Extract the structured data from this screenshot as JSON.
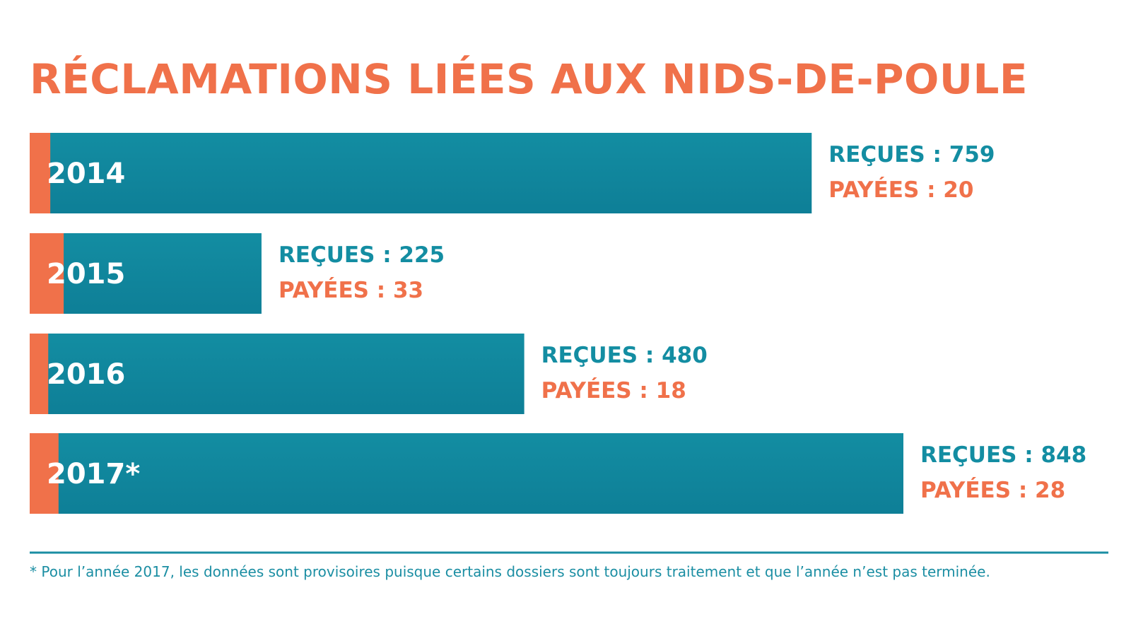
{
  "colors": {
    "received": "#138da2",
    "received_dark": "#0e7f97",
    "paid": "#f0714a",
    "footnote": "#1b8ea3"
  },
  "chart_data": {
    "type": "bar",
    "orientation": "horizontal",
    "stacked": "overlay",
    "title": "RÉCLAMATIONS LIÉES AUX NIDS-DE-POULE",
    "categories": [
      "2014",
      "2015",
      "2016",
      "2017*"
    ],
    "series": [
      {
        "name": "REÇUES",
        "values": [
          759,
          225,
          480,
          848
        ]
      },
      {
        "name": "PAYÉES",
        "values": [
          20,
          33,
          18,
          28
        ]
      }
    ],
    "received_label_prefix": "REÇUES : ",
    "paid_label_prefix": "PAYÉES : ",
    "xlim": [
      0,
      848
    ],
    "grid": false,
    "legend": "none",
    "footnote": "* Pour l’année 2017, les données sont provisoires puisque certains dossiers sont toujours traitement et que l’année n’est pas terminée."
  }
}
